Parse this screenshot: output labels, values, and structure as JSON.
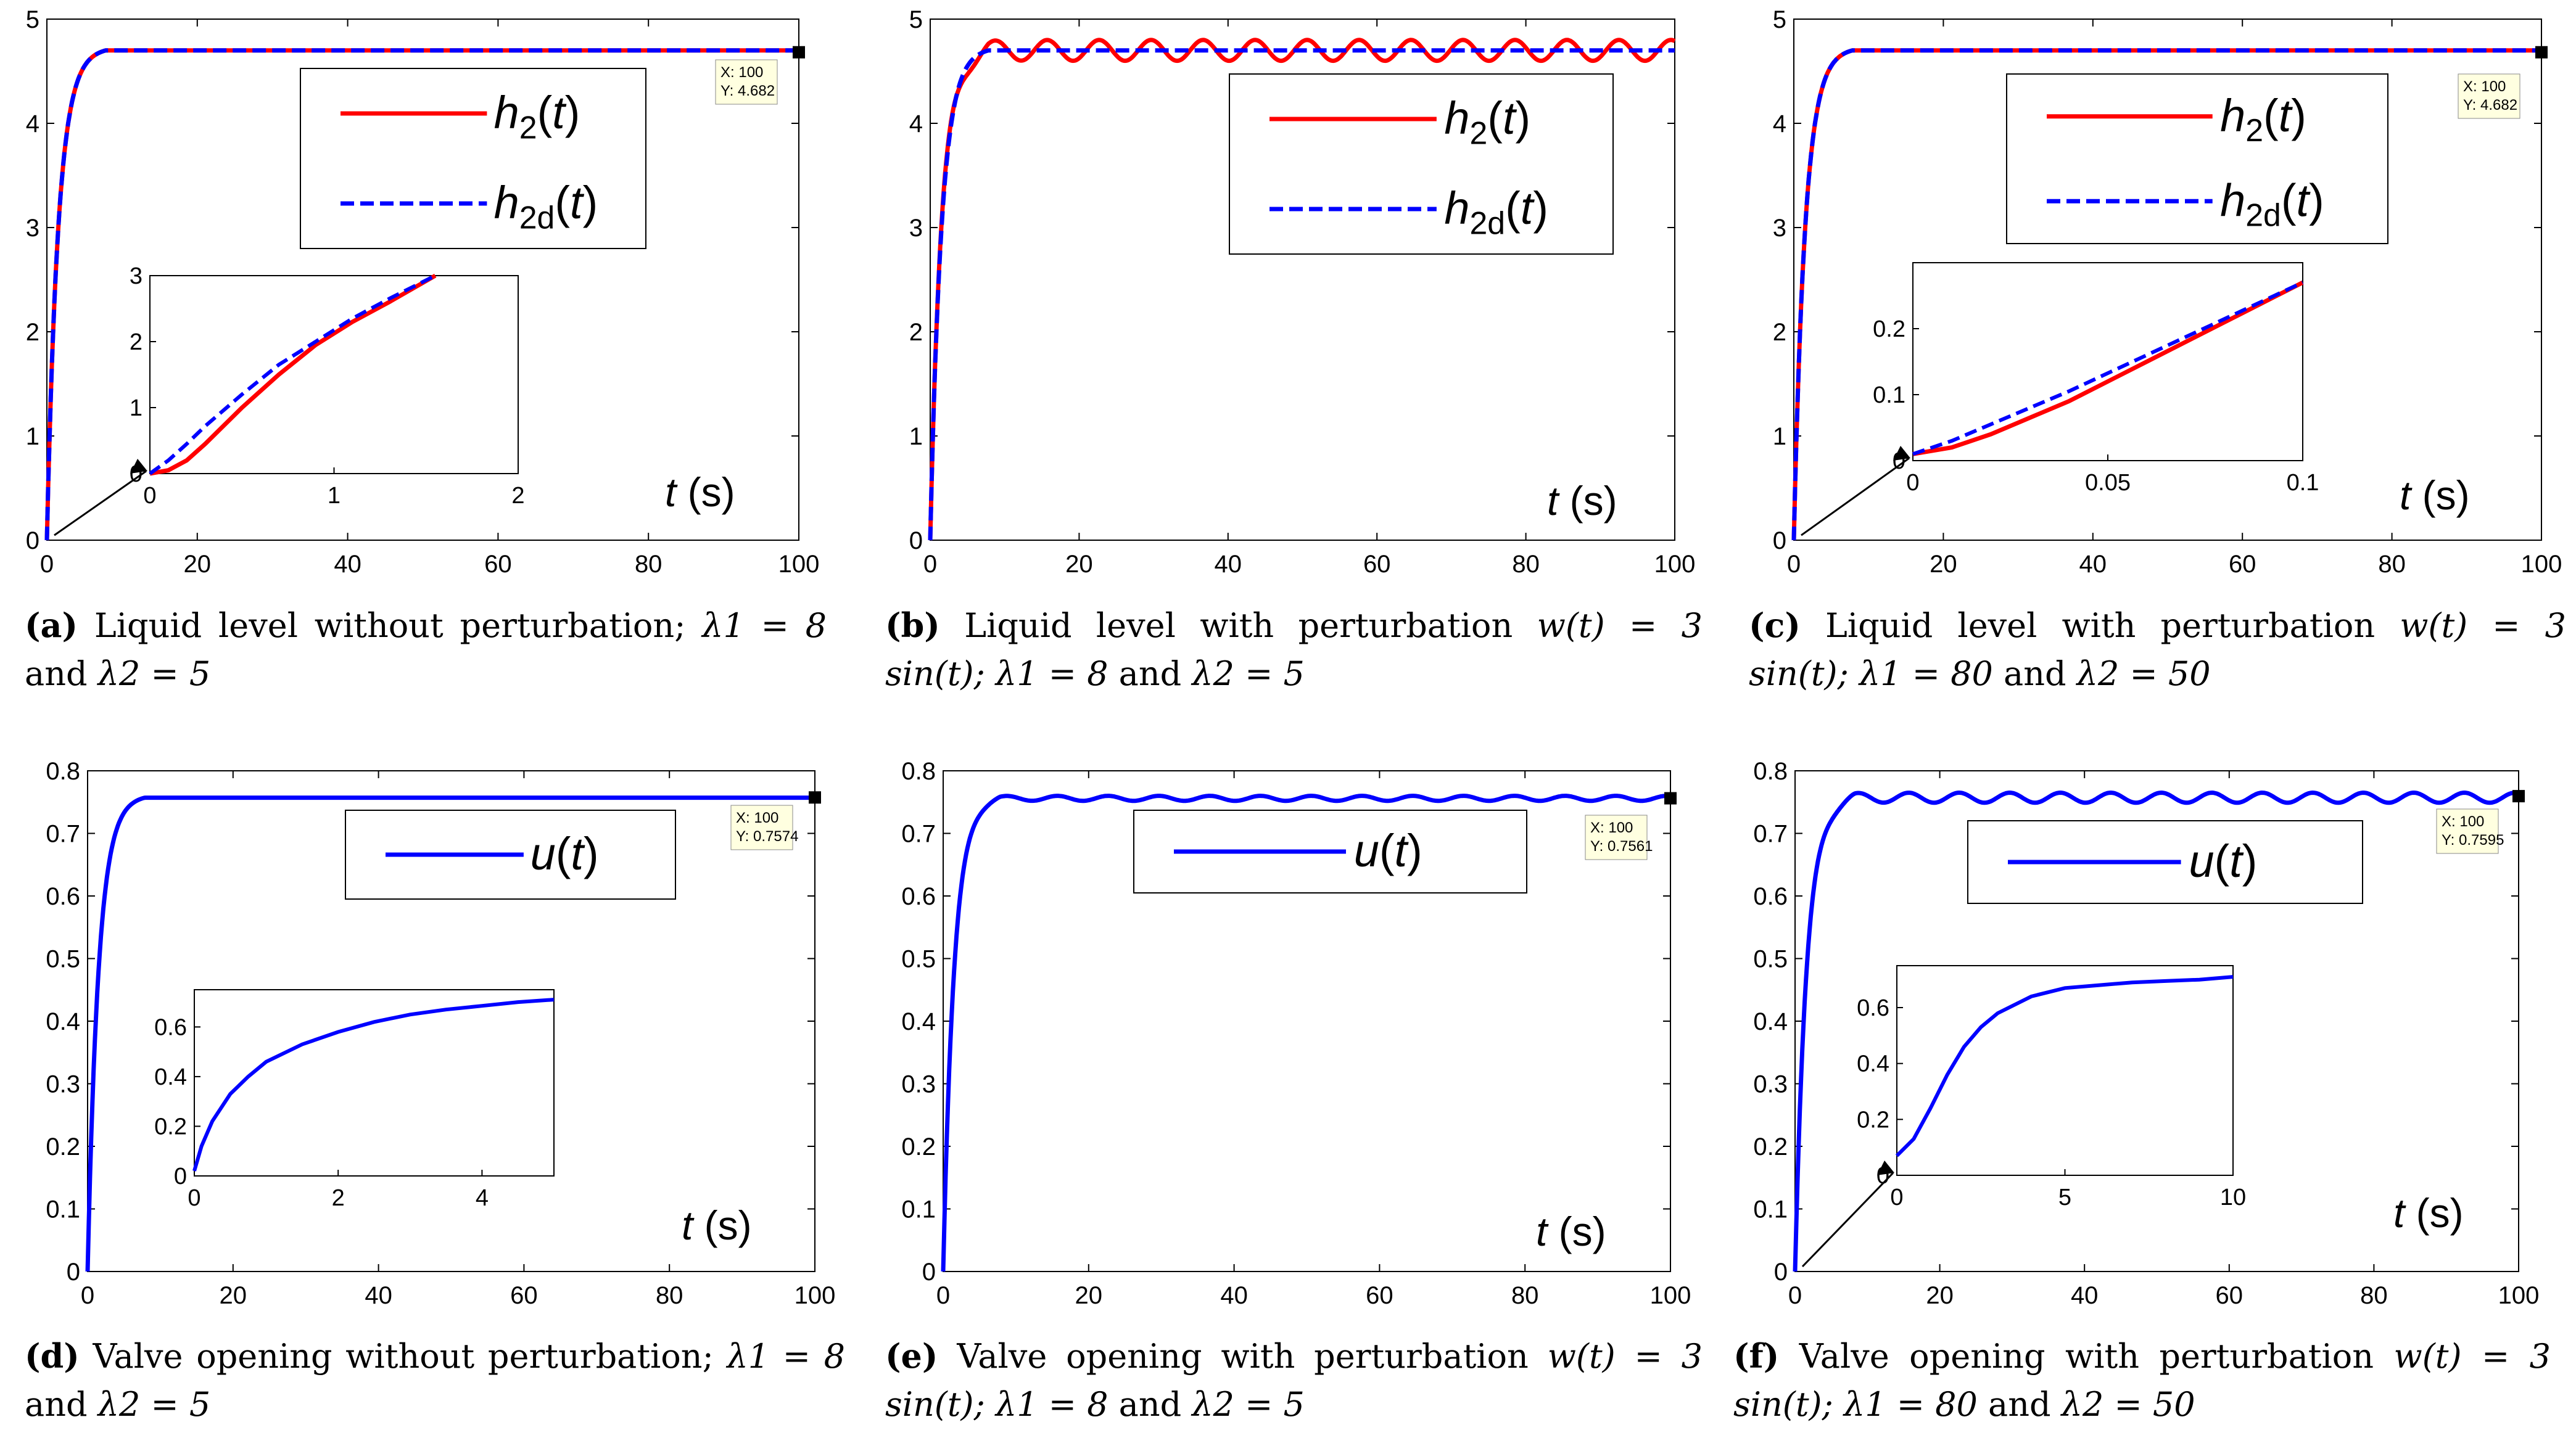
{
  "charts": [
    {
      "id": "a",
      "chart_data": {
        "type": "line",
        "xlim": [
          0,
          100
        ],
        "ylim": [
          0,
          5
        ],
        "xticks": [
          0,
          20,
          40,
          60,
          80,
          100
        ],
        "yticks": [
          0,
          1,
          2,
          3,
          4,
          5
        ],
        "xlabel": "t (s)",
        "series": [
          {
            "name": "h2(t)",
            "color": "#ff0000",
            "style": "solid",
            "final": 4.7,
            "tau": 1.5,
            "osc": 0
          },
          {
            "name": "h2d(t)",
            "color": "#0000ff",
            "style": "dashed",
            "final": 4.7,
            "tau": 1.5,
            "osc": 0
          }
        ],
        "legend": [
          {
            "label": "h2(t)",
            "main": "h",
            "sub": "2"
          },
          {
            "label": "h2d(t)",
            "main": "h",
            "sub": "2d"
          }
        ],
        "datatip": {
          "x_label": "X: 100",
          "y_label": "Y: 4.682",
          "x": 100,
          "y": 4.682
        },
        "inset": {
          "xlim": [
            0,
            2
          ],
          "ylim": [
            0,
            3
          ],
          "xticks": [
            0,
            1,
            2
          ],
          "yticks": [
            0,
            1,
            2,
            3
          ],
          "red_points": [
            [
              0,
              0
            ],
            [
              0.1,
              0.05
            ],
            [
              0.2,
              0.2
            ],
            [
              0.3,
              0.45
            ],
            [
              0.5,
              1.0
            ],
            [
              0.7,
              1.5
            ],
            [
              0.9,
              1.95
            ],
            [
              1.1,
              2.3
            ],
            [
              1.3,
              2.6
            ],
            [
              1.55,
              3.0
            ]
          ],
          "blue_points": [
            [
              0,
              0
            ],
            [
              0.1,
              0.2
            ],
            [
              0.2,
              0.45
            ],
            [
              0.3,
              0.72
            ],
            [
              0.5,
              1.2
            ],
            [
              0.7,
              1.65
            ],
            [
              0.9,
              2.0
            ],
            [
              1.1,
              2.35
            ],
            [
              1.3,
              2.65
            ],
            [
              1.55,
              3.0
            ]
          ]
        }
      },
      "caption": {
        "letter": "(a)",
        "text": "Liquid level without perturbation;",
        "param1": "λ1 = 8",
        "param2": "λ2 = 5"
      }
    },
    {
      "id": "b",
      "chart_data": {
        "type": "line",
        "xlim": [
          0,
          100
        ],
        "ylim": [
          0,
          5
        ],
        "xticks": [
          0,
          20,
          40,
          60,
          80,
          100
        ],
        "yticks": [
          0,
          1,
          2,
          3,
          4,
          5
        ],
        "xlabel": "t (s)",
        "series": [
          {
            "name": "h2(t)",
            "color": "#ff0000",
            "style": "solid",
            "final": 4.7,
            "tau": 1.5,
            "osc": 0.1
          },
          {
            "name": "h2d(t)",
            "color": "#0000ff",
            "style": "dashed",
            "final": 4.7,
            "tau": 1.5,
            "osc": 0
          }
        ],
        "legend": [
          {
            "label": "h2(t)",
            "main": "h",
            "sub": "2"
          },
          {
            "label": "h2d(t)",
            "main": "h",
            "sub": "2d"
          }
        ]
      },
      "caption": {
        "letter": "(b)",
        "text": "Liquid level with perturbation",
        "perturbation": "w(t) = 3 sin(t);",
        "param1": "λ1 = 8",
        "param2": "λ2 = 5"
      }
    },
    {
      "id": "c",
      "chart_data": {
        "type": "line",
        "xlim": [
          0,
          100
        ],
        "ylim": [
          0,
          5
        ],
        "xticks": [
          0,
          20,
          40,
          60,
          80,
          100
        ],
        "yticks": [
          0,
          1,
          2,
          3,
          4,
          5
        ],
        "xlabel": "t (s)",
        "series": [
          {
            "name": "h2(t)",
            "color": "#ff0000",
            "style": "solid",
            "final": 4.7,
            "tau": 1.5,
            "osc": 0
          },
          {
            "name": "h2d(t)",
            "color": "#0000ff",
            "style": "dashed",
            "final": 4.7,
            "tau": 1.5,
            "osc": 0
          }
        ],
        "legend": [
          {
            "label": "h2(t)",
            "main": "h",
            "sub": "2"
          },
          {
            "label": "h2d(t)",
            "main": "h",
            "sub": "2d"
          }
        ],
        "datatip": {
          "x_label": "X: 100",
          "y_label": "Y: 4.682",
          "x": 100,
          "y": 4.682
        },
        "inset": {
          "xlim": [
            0,
            0.1
          ],
          "ylim": [
            0,
            0.3
          ],
          "xticks": [
            0,
            0.05,
            0.1
          ],
          "yticks": [
            0,
            0.1,
            0.2
          ],
          "red_points": [
            [
              0,
              0.01
            ],
            [
              0.01,
              0.02
            ],
            [
              0.02,
              0.04
            ],
            [
              0.04,
              0.09
            ],
            [
              0.06,
              0.15
            ],
            [
              0.08,
              0.21
            ],
            [
              0.1,
              0.27
            ]
          ],
          "blue_points": [
            [
              0,
              0.01
            ],
            [
              0.01,
              0.03
            ],
            [
              0.02,
              0.055
            ],
            [
              0.04,
              0.105
            ],
            [
              0.06,
              0.16
            ],
            [
              0.08,
              0.215
            ],
            [
              0.1,
              0.27
            ]
          ]
        }
      },
      "caption": {
        "letter": "(c)",
        "text": "Liquid level with perturbation",
        "perturbation": "w(t) = 3 sin(t);",
        "param1": "λ1 = 80",
        "param2": "λ2 = 50"
      }
    },
    {
      "id": "d",
      "chart_data": {
        "type": "line",
        "xlim": [
          0,
          100
        ],
        "ylim": [
          0,
          0.8
        ],
        "xticks": [
          0,
          20,
          40,
          60,
          80,
          100
        ],
        "yticks": [
          0,
          0.1,
          0.2,
          0.3,
          0.4,
          0.5,
          0.6,
          0.7,
          0.8
        ],
        "xlabel": "t (s)",
        "series": [
          {
            "name": "u(t)",
            "color": "#0000ff",
            "style": "solid",
            "final": 0.757,
            "tau": 1.5,
            "osc": 0
          }
        ],
        "legend": [
          {
            "label": "u(t)",
            "main": "u",
            "sub": ""
          }
        ],
        "datatip": {
          "x_label": "X: 100",
          "y_label": "Y: 0.7574",
          "x": 100,
          "y": 0.7574
        },
        "inset": {
          "xlim": [
            0,
            5
          ],
          "ylim": [
            0,
            0.75
          ],
          "xticks": [
            0,
            2,
            4
          ],
          "yticks": [
            0,
            0.2,
            0.4,
            0.6
          ],
          "blue_points": [
            [
              0,
              0.02
            ],
            [
              0.1,
              0.12
            ],
            [
              0.25,
              0.22
            ],
            [
              0.5,
              0.33
            ],
            [
              0.75,
              0.4
            ],
            [
              1,
              0.46
            ],
            [
              1.5,
              0.53
            ],
            [
              2,
              0.58
            ],
            [
              2.5,
              0.62
            ],
            [
              3,
              0.65
            ],
            [
              3.5,
              0.67
            ],
            [
              4,
              0.685
            ],
            [
              4.5,
              0.7
            ],
            [
              5,
              0.71
            ]
          ]
        }
      },
      "caption": {
        "letter": "(d)",
        "text": "Valve opening without perturbation;",
        "param1": "λ1 = 8",
        "param2": "λ2 = 5"
      }
    },
    {
      "id": "e",
      "chart_data": {
        "type": "line",
        "xlim": [
          0,
          100
        ],
        "ylim": [
          0,
          0.8
        ],
        "xticks": [
          0,
          20,
          40,
          60,
          80,
          100
        ],
        "yticks": [
          0,
          0.1,
          0.2,
          0.3,
          0.4,
          0.5,
          0.6,
          0.7,
          0.8
        ],
        "xlabel": "t (s)",
        "series": [
          {
            "name": "u(t)",
            "color": "#0000ff",
            "style": "solid",
            "final": 0.756,
            "tau": 1.5,
            "osc": 0.004
          }
        ],
        "legend": [
          {
            "label": "u(t)",
            "main": "u",
            "sub": ""
          }
        ],
        "datatip": {
          "x_label": "X: 100",
          "y_label": "Y: 0.7561",
          "x": 100,
          "y": 0.7561
        }
      },
      "caption": {
        "letter": "(e)",
        "text": "Valve opening with perturbation",
        "perturbation": "w(t) = 3 sin(t);",
        "param1": "λ1 = 8",
        "param2": "λ2 = 5"
      }
    },
    {
      "id": "f",
      "chart_data": {
        "type": "line",
        "xlim": [
          0,
          100
        ],
        "ylim": [
          0,
          0.8
        ],
        "xticks": [
          0,
          20,
          40,
          60,
          80,
          100
        ],
        "yticks": [
          0,
          0.1,
          0.2,
          0.3,
          0.4,
          0.5,
          0.6,
          0.7,
          0.8
        ],
        "xlabel": "t (s)",
        "series": [
          {
            "name": "u(t)",
            "color": "#0000ff",
            "style": "solid",
            "final": 0.757,
            "tau": 1.6,
            "osc": 0.008
          }
        ],
        "legend": [
          {
            "label": "u(t)",
            "main": "u",
            "sub": ""
          }
        ],
        "datatip": {
          "x_label": "X: 100",
          "y_label": "Y: 0.7595",
          "x": 100,
          "y": 0.7595
        },
        "inset": {
          "xlim": [
            0,
            10
          ],
          "ylim": [
            0,
            0.75
          ],
          "xticks": [
            0,
            5,
            10
          ],
          "yticks": [
            0,
            0.2,
            0.4,
            0.6
          ],
          "blue_points": [
            [
              0,
              0.07
            ],
            [
              0.5,
              0.13
            ],
            [
              1,
              0.24
            ],
            [
              1.5,
              0.36
            ],
            [
              2,
              0.46
            ],
            [
              2.5,
              0.53
            ],
            [
              3,
              0.58
            ],
            [
              4,
              0.64
            ],
            [
              5,
              0.67
            ],
            [
              6,
              0.68
            ],
            [
              7,
              0.69
            ],
            [
              8,
              0.695
            ],
            [
              9,
              0.7
            ],
            [
              10,
              0.71
            ]
          ]
        }
      },
      "caption": {
        "letter": "(f)",
        "text": "Valve opening with perturbation",
        "perturbation": "w(t) = 3 sin(t);",
        "param1": "λ1 = 80",
        "param2": "λ2 = 50"
      }
    }
  ]
}
